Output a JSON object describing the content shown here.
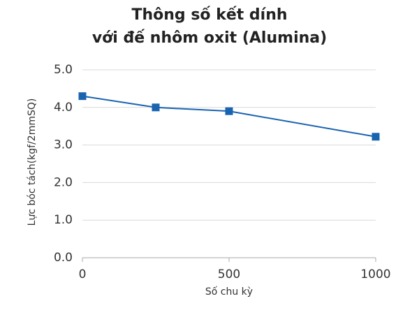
{
  "chart_data": {
    "type": "line",
    "title": [
      "Thông số kết dính",
      "với đế nhôm oxit (Alumina)"
    ],
    "x_label": "Số chu kỳ",
    "y_label": "Lực bóc tách(kgf/2mmSQ)",
    "x": [
      0,
      250,
      500,
      1000
    ],
    "values": [
      4.3,
      4.0,
      3.9,
      3.22
    ],
    "color": "#1a63b0",
    "marker": "square",
    "xlim": [
      0,
      1000
    ],
    "xticks": [
      0,
      500,
      1000
    ],
    "ylim": [
      0,
      5
    ],
    "yticks": [
      {
        "value": 0,
        "label": "0.0"
      },
      {
        "value": 1,
        "label": "1.0"
      },
      {
        "value": 2,
        "label": "2.0"
      },
      {
        "value": 3,
        "label": "3.0"
      },
      {
        "value": 4,
        "label": "4.0"
      },
      {
        "value": 5,
        "label": "5.0"
      }
    ],
    "grid": true
  }
}
